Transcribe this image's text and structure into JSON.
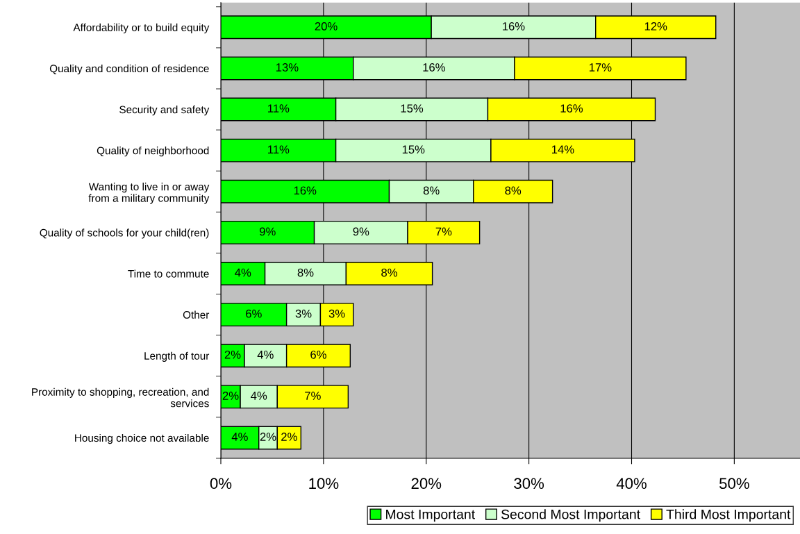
{
  "chart_data": {
    "type": "bar",
    "orientation": "horizontal",
    "stacked": true,
    "categories": [
      "Affordability or to build equity",
      "Quality and condition of residence",
      "Security and safety",
      "Quality of neighborhood",
      "Wanting to live in or away\nfrom a military community",
      "Quality of schools for your child(ren)",
      "Time to commute",
      "Other",
      "Length of tour",
      "Proximity to shopping, recreation, and\nservices",
      "Housing choice not available"
    ],
    "series": [
      {
        "name": "Most Important",
        "color": "#00ff00",
        "values": [
          20.5,
          12.9,
          11.2,
          11.2,
          16.4,
          9.1,
          4.3,
          6.4,
          2.3,
          1.9,
          3.7
        ],
        "value_labels": [
          "20%",
          "13%",
          "11%",
          "11%",
          "16%",
          "9%",
          "4%",
          "6%",
          "2%",
          "2%",
          "4%"
        ]
      },
      {
        "name": "Second Most Important",
        "color": "#ccffcc",
        "values": [
          16.0,
          15.7,
          14.8,
          15.1,
          8.2,
          9.1,
          7.9,
          3.3,
          4.1,
          3.6,
          1.8
        ],
        "value_labels": [
          "16%",
          "16%",
          "15%",
          "15%",
          "8%",
          "9%",
          "8%",
          "3%",
          "4%",
          "4%",
          "2%"
        ]
      },
      {
        "name": "Third Most Important",
        "color": "#ffff00",
        "values": [
          11.7,
          16.7,
          16.3,
          14.0,
          7.7,
          7.0,
          8.4,
          3.2,
          6.2,
          6.9,
          2.3
        ],
        "value_labels": [
          "12%",
          "17%",
          "16%",
          "14%",
          "8%",
          "7%",
          "8%",
          "3%",
          "6%",
          "7%",
          "2%"
        ]
      }
    ],
    "xlim": [
      0,
      56.4
    ],
    "xticks": [
      {
        "value": 0,
        "label": "0%"
      },
      {
        "value": 10,
        "label": "10%"
      },
      {
        "value": 20,
        "label": "20%"
      },
      {
        "value": 30,
        "label": "30%"
      },
      {
        "value": 40,
        "label": "40%"
      },
      {
        "value": 50,
        "label": "50%"
      }
    ],
    "grid": "x",
    "legend": "bottom"
  }
}
